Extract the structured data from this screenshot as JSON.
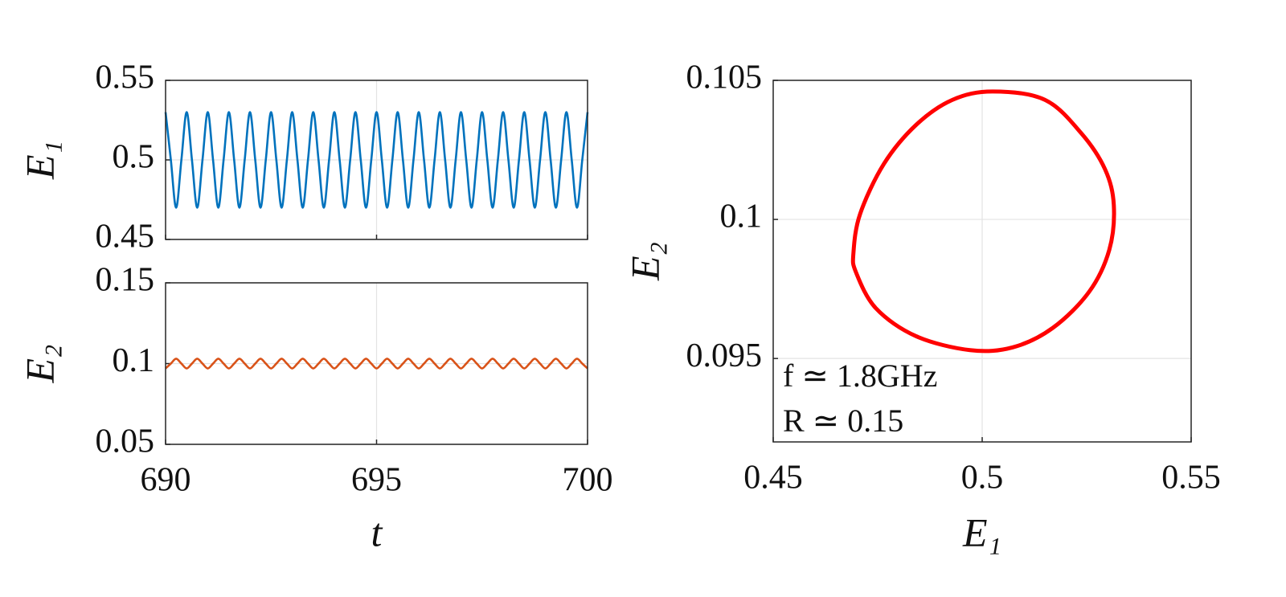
{
  "chart_data": [
    {
      "type": "line",
      "y_label": "E₁",
      "x": [
        690,
        690.125,
        690.25,
        690.375,
        690.5,
        690.625,
        690.75,
        690.875,
        691,
        691.125,
        691.25,
        691.375,
        691.5,
        691.625,
        691.75,
        691.875,
        692,
        692.125,
        692.25,
        692.375,
        692.5,
        692.625,
        692.75,
        692.875,
        693,
        693.125,
        693.25,
        693.375,
        693.5,
        693.625,
        693.75,
        693.875,
        694,
        694.125,
        694.25,
        694.375,
        694.5,
        694.625,
        694.75,
        694.875,
        695,
        695.125,
        695.25,
        695.375,
        695.5,
        695.625,
        695.75,
        695.875,
        696,
        696.125,
        696.25,
        696.375,
        696.5,
        696.625,
        696.75,
        696.875,
        697,
        697.125,
        697.25,
        697.375,
        697.5,
        697.625,
        697.75,
        697.875,
        698,
        698.125,
        698.25,
        698.375,
        698.5,
        698.625,
        698.75,
        698.875,
        699,
        699.125,
        699.25,
        699.375,
        699.5,
        699.625,
        699.75,
        699.875,
        700
      ],
      "series": [
        {
          "color": "#0072bd",
          "values": [
            0.53,
            0.5,
            0.47,
            0.5,
            0.53,
            0.5,
            0.47,
            0.5,
            0.53,
            0.5,
            0.47,
            0.5,
            0.53,
            0.5,
            0.47,
            0.5,
            0.53,
            0.5,
            0.47,
            0.5,
            0.53,
            0.5,
            0.47,
            0.5,
            0.53,
            0.5,
            0.47,
            0.5,
            0.53,
            0.5,
            0.47,
            0.5,
            0.53,
            0.5,
            0.47,
            0.5,
            0.53,
            0.5,
            0.47,
            0.5,
            0.53,
            0.5,
            0.47,
            0.5,
            0.53,
            0.5,
            0.47,
            0.5,
            0.53,
            0.5,
            0.47,
            0.5,
            0.53,
            0.5,
            0.47,
            0.5,
            0.53,
            0.5,
            0.47,
            0.5,
            0.53,
            0.5,
            0.47,
            0.5,
            0.53,
            0.5,
            0.47,
            0.5,
            0.53,
            0.5,
            0.47,
            0.5,
            0.53,
            0.5,
            0.47,
            0.5,
            0.53,
            0.5,
            0.47,
            0.5,
            0.53
          ]
        }
      ],
      "xlim": [
        690,
        700
      ],
      "xticks": [
        690,
        695,
        700
      ],
      "ylim": [
        0.45,
        0.55
      ],
      "yticks": [
        0.45,
        0.5,
        0.55
      ],
      "grid": true
    },
    {
      "type": "line",
      "y_label": "E₂",
      "x_label": "t",
      "x": [
        690,
        690.125,
        690.25,
        690.375,
        690.5,
        690.625,
        690.75,
        690.875,
        691,
        691.125,
        691.25,
        691.375,
        691.5,
        691.625,
        691.75,
        691.875,
        692,
        692.125,
        692.25,
        692.375,
        692.5,
        692.625,
        692.75,
        692.875,
        693,
        693.125,
        693.25,
        693.375,
        693.5,
        693.625,
        693.75,
        693.875,
        694,
        694.125,
        694.25,
        694.375,
        694.5,
        694.625,
        694.75,
        694.875,
        695,
        695.125,
        695.25,
        695.375,
        695.5,
        695.625,
        695.75,
        695.875,
        696,
        696.125,
        696.25,
        696.375,
        696.5,
        696.625,
        696.75,
        696.875,
        697,
        697.125,
        697.25,
        697.375,
        697.5,
        697.625,
        697.75,
        697.875,
        698,
        698.125,
        698.25,
        698.375,
        698.5,
        698.625,
        698.75,
        698.875,
        699,
        699.125,
        699.25,
        699.375,
        699.5,
        699.625,
        699.75,
        699.875,
        700
      ],
      "series": [
        {
          "color": "#d95319",
          "values": [
            0.097,
            0.1,
            0.103,
            0.1,
            0.097,
            0.1,
            0.103,
            0.1,
            0.097,
            0.1,
            0.103,
            0.1,
            0.097,
            0.1,
            0.103,
            0.1,
            0.097,
            0.1,
            0.103,
            0.1,
            0.097,
            0.1,
            0.103,
            0.1,
            0.097,
            0.1,
            0.103,
            0.1,
            0.097,
            0.1,
            0.103,
            0.1,
            0.097,
            0.1,
            0.103,
            0.1,
            0.097,
            0.1,
            0.103,
            0.1,
            0.097,
            0.1,
            0.103,
            0.1,
            0.097,
            0.1,
            0.103,
            0.1,
            0.097,
            0.1,
            0.103,
            0.1,
            0.097,
            0.1,
            0.103,
            0.1,
            0.097,
            0.1,
            0.103,
            0.1,
            0.097,
            0.1,
            0.103,
            0.1,
            0.097,
            0.1,
            0.103,
            0.1,
            0.097,
            0.1,
            0.103,
            0.1,
            0.097,
            0.1,
            0.103,
            0.1,
            0.097,
            0.1,
            0.103,
            0.1,
            0.097
          ]
        }
      ],
      "xlim": [
        690,
        700
      ],
      "xticks": [
        690,
        695,
        700
      ],
      "ylim": [
        0.05,
        0.15
      ],
      "yticks": [
        0.05,
        0.1,
        0.15
      ],
      "grid": true
    },
    {
      "type": "line",
      "x_label": "E₁",
      "y_label": "E₂",
      "annotations": [
        "f ≃ 1.8GHz",
        "R ≃ 0.15"
      ],
      "x": [
        0.5025,
        0.515,
        0.5237,
        0.5294,
        0.5315,
        0.5304,
        0.5256,
        0.5169,
        0.5073,
        0.4971,
        0.4842,
        0.4746,
        0.4698,
        0.4692,
        0.4708,
        0.4765,
        0.4842,
        0.4929
      ],
      "series": [
        {
          "color": "#ff0000",
          "closed": true,
          "values": [
            0.1046,
            0.1043,
            0.1031,
            0.1018,
            0.1005,
            0.0989,
            0.0974,
            0.0961,
            0.0954,
            0.0953,
            0.0958,
            0.0968,
            0.0981,
            0.0988,
            0.1002,
            0.102,
            0.1034,
            0.1043
          ]
        }
      ],
      "xlim": [
        0.45,
        0.55
      ],
      "xticks": [
        0.45,
        0.5,
        0.55
      ],
      "ylim": [
        0.092,
        0.105
      ],
      "yticks": [
        0.095,
        0.1,
        0.105
      ],
      "grid": true
    }
  ]
}
